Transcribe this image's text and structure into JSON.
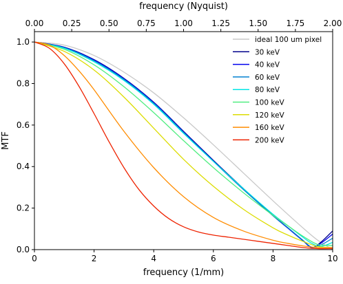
{
  "chart_data": {
    "type": "line",
    "xlabel": "frequency (1/mm)",
    "ylabel": "MTF",
    "top_xlabel": "frequency (Nyquist)",
    "xlim": [
      0,
      10
    ],
    "ylim": [
      0,
      1.05
    ],
    "xticks": [
      0,
      2,
      4,
      6,
      8,
      10
    ],
    "xtick_labels": [
      "0",
      "2",
      "4",
      "6",
      "8",
      "10"
    ],
    "yticks": [
      0,
      0.2,
      0.4,
      0.6,
      0.8,
      1.0
    ],
    "ytick_labels": [
      "0.0",
      "0.2",
      "0.4",
      "0.6",
      "0.8",
      "1.0"
    ],
    "top_xticks": [
      0,
      0.25,
      0.5,
      0.75,
      1.0,
      1.25,
      1.5,
      1.75,
      2.0
    ],
    "top_xtick_labels": [
      "0.00",
      "0.25",
      "0.50",
      "0.75",
      "1.00",
      "1.25",
      "1.50",
      "1.75",
      "2.00"
    ],
    "grid": false,
    "legend_position": "top-right",
    "series": [
      {
        "name": "ideal 100 um pixel",
        "color": "#c8c8c8",
        "x": [
          0,
          1,
          2,
          3,
          4,
          5,
          6,
          7,
          8,
          9,
          9.5,
          10
        ],
        "y": [
          1.0,
          0.985,
          0.935,
          0.855,
          0.755,
          0.635,
          0.505,
          0.37,
          0.235,
          0.105,
          0.045,
          0.0
        ]
      },
      {
        "name": "30 keV",
        "color": "#00008b",
        "x": [
          0,
          1,
          2,
          3,
          4,
          5,
          6,
          7,
          8,
          8.5,
          9,
          9.3,
          9.6,
          10
        ],
        "y": [
          1.0,
          0.975,
          0.915,
          0.825,
          0.71,
          0.57,
          0.43,
          0.295,
          0.165,
          0.105,
          0.045,
          0.01,
          0.035,
          0.09
        ]
      },
      {
        "name": "40 keV",
        "color": "#0000ee",
        "x": [
          0,
          1,
          2,
          3,
          4,
          5,
          6,
          7,
          8,
          8.5,
          9,
          9.3,
          9.6,
          10
        ],
        "y": [
          1.0,
          0.974,
          0.913,
          0.823,
          0.708,
          0.567,
          0.427,
          0.292,
          0.163,
          0.103,
          0.043,
          0.01,
          0.03,
          0.075
        ]
      },
      {
        "name": "60 keV",
        "color": "#0080d0",
        "x": [
          0,
          1,
          2,
          3,
          4,
          5,
          6,
          7,
          8,
          8.5,
          9,
          9.3,
          9.6,
          10
        ],
        "y": [
          1.0,
          0.972,
          0.91,
          0.82,
          0.705,
          0.565,
          0.425,
          0.29,
          0.163,
          0.105,
          0.045,
          0.012,
          0.022,
          0.055
        ]
      },
      {
        "name": "80 keV",
        "color": "#00e5e5",
        "x": [
          0,
          1,
          2,
          3,
          4,
          5,
          6,
          7,
          8,
          8.5,
          9,
          9.3,
          9.6,
          10
        ],
        "y": [
          1.0,
          0.97,
          0.905,
          0.815,
          0.7,
          0.56,
          0.425,
          0.295,
          0.17,
          0.115,
          0.06,
          0.03,
          0.015,
          0.035
        ]
      },
      {
        "name": "100 keV",
        "color": "#50ee80",
        "x": [
          0,
          1,
          2,
          3,
          4,
          5,
          6,
          7,
          8,
          8.5,
          9,
          9.5,
          10
        ],
        "y": [
          1.0,
          0.965,
          0.89,
          0.785,
          0.66,
          0.525,
          0.395,
          0.275,
          0.165,
          0.115,
          0.065,
          0.025,
          0.02
        ]
      },
      {
        "name": "120 keV",
        "color": "#dcdc00",
        "x": [
          0,
          1,
          2,
          3,
          4,
          5,
          6,
          7,
          8,
          8.5,
          9,
          9.5,
          10
        ],
        "y": [
          1.0,
          0.955,
          0.865,
          0.735,
          0.585,
          0.435,
          0.305,
          0.195,
          0.105,
          0.07,
          0.04,
          0.015,
          0.01
        ]
      },
      {
        "name": "160 keV",
        "color": "#ff8c00",
        "x": [
          0,
          0.5,
          1,
          1.5,
          2,
          3,
          4,
          5,
          6,
          7,
          8,
          8.5,
          9,
          9.5,
          10
        ],
        "y": [
          1.0,
          0.985,
          0.935,
          0.86,
          0.77,
          0.57,
          0.395,
          0.255,
          0.155,
          0.09,
          0.045,
          0.03,
          0.018,
          0.01,
          0.01
        ]
      },
      {
        "name": "200 keV",
        "color": "#ee2200",
        "x": [
          0,
          0.5,
          1,
          1.5,
          2,
          2.5,
          3,
          3.5,
          4,
          4.5,
          5,
          5.5,
          6,
          6.5,
          7,
          7.5,
          8,
          8.5,
          9,
          9.5,
          10
        ],
        "y": [
          1.0,
          0.97,
          0.895,
          0.785,
          0.655,
          0.52,
          0.395,
          0.29,
          0.21,
          0.15,
          0.11,
          0.085,
          0.07,
          0.06,
          0.05,
          0.04,
          0.03,
          0.02,
          0.01,
          0.005,
          0.005
        ]
      }
    ]
  }
}
